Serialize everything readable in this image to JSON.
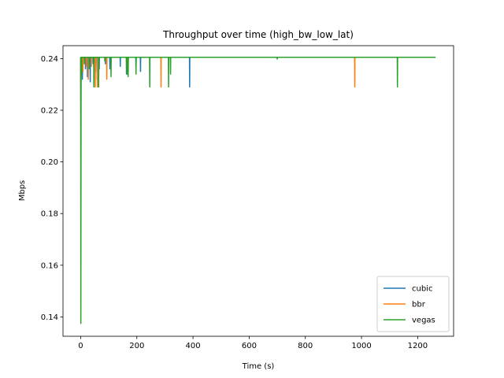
{
  "chart_data": {
    "type": "line",
    "title": "Throughput over time (high_bw_low_lat)",
    "xlabel": "Time (s)",
    "ylabel": "Mbps",
    "xlim": [
      -63,
      1328
    ],
    "ylim": [
      0.1325,
      0.245
    ],
    "xticks": [
      0,
      200,
      400,
      600,
      800,
      1000,
      1200
    ],
    "yticks": [
      0.14,
      0.16,
      0.18,
      0.2,
      0.22,
      0.24
    ],
    "ytick_labels": [
      "0.14",
      "0.16",
      "0.18",
      "0.20",
      "0.22",
      "0.24"
    ],
    "grid": false,
    "legend_position": "lower right",
    "baseline": 0.2405,
    "series": [
      {
        "name": "cubic",
        "color": "#1f77b4",
        "x_range": [
          0,
          1118
        ],
        "start_min": 0.224,
        "dips": [
          [
            6,
            0.232
          ],
          [
            17,
            0.236
          ],
          [
            24,
            0.233
          ],
          [
            34,
            0.231
          ],
          [
            44,
            0.238
          ],
          [
            53,
            0.235
          ],
          [
            59,
            0.232
          ],
          [
            66,
            0.236
          ],
          [
            88,
            0.238
          ],
          [
            104,
            0.236
          ],
          [
            141,
            0.237
          ],
          [
            165,
            0.234
          ],
          [
            197,
            0.237
          ],
          [
            213,
            0.235
          ],
          [
            388,
            0.229
          ]
        ]
      },
      {
        "name": "bbr",
        "color": "#ff7f0e",
        "x_range": [
          0,
          1118
        ],
        "start_min": 0.217,
        "dips": [
          [
            8,
            0.235
          ],
          [
            20,
            0.237
          ],
          [
            27,
            0.232
          ],
          [
            38,
            0.237
          ],
          [
            52,
            0.229
          ],
          [
            60,
            0.229
          ],
          [
            93,
            0.232
          ],
          [
            169,
            0.234
          ],
          [
            286,
            0.229
          ],
          [
            976,
            0.229
          ]
        ]
      },
      {
        "name": "vegas",
        "color": "#2ca02c",
        "x_range": [
          0,
          1264
        ],
        "start_min": 0.1375,
        "dips": [
          [
            3,
            0.234
          ],
          [
            13,
            0.238
          ],
          [
            30,
            0.236
          ],
          [
            47,
            0.229
          ],
          [
            64,
            0.229
          ],
          [
            86,
            0.239
          ],
          [
            108,
            0.233
          ],
          [
            163,
            0.234
          ],
          [
            169,
            0.233
          ],
          [
            197,
            0.234
          ],
          [
            246,
            0.229
          ],
          [
            313,
            0.229
          ],
          [
            320,
            0.234
          ],
          [
            700,
            0.2398
          ],
          [
            1128,
            0.229
          ]
        ]
      }
    ]
  }
}
